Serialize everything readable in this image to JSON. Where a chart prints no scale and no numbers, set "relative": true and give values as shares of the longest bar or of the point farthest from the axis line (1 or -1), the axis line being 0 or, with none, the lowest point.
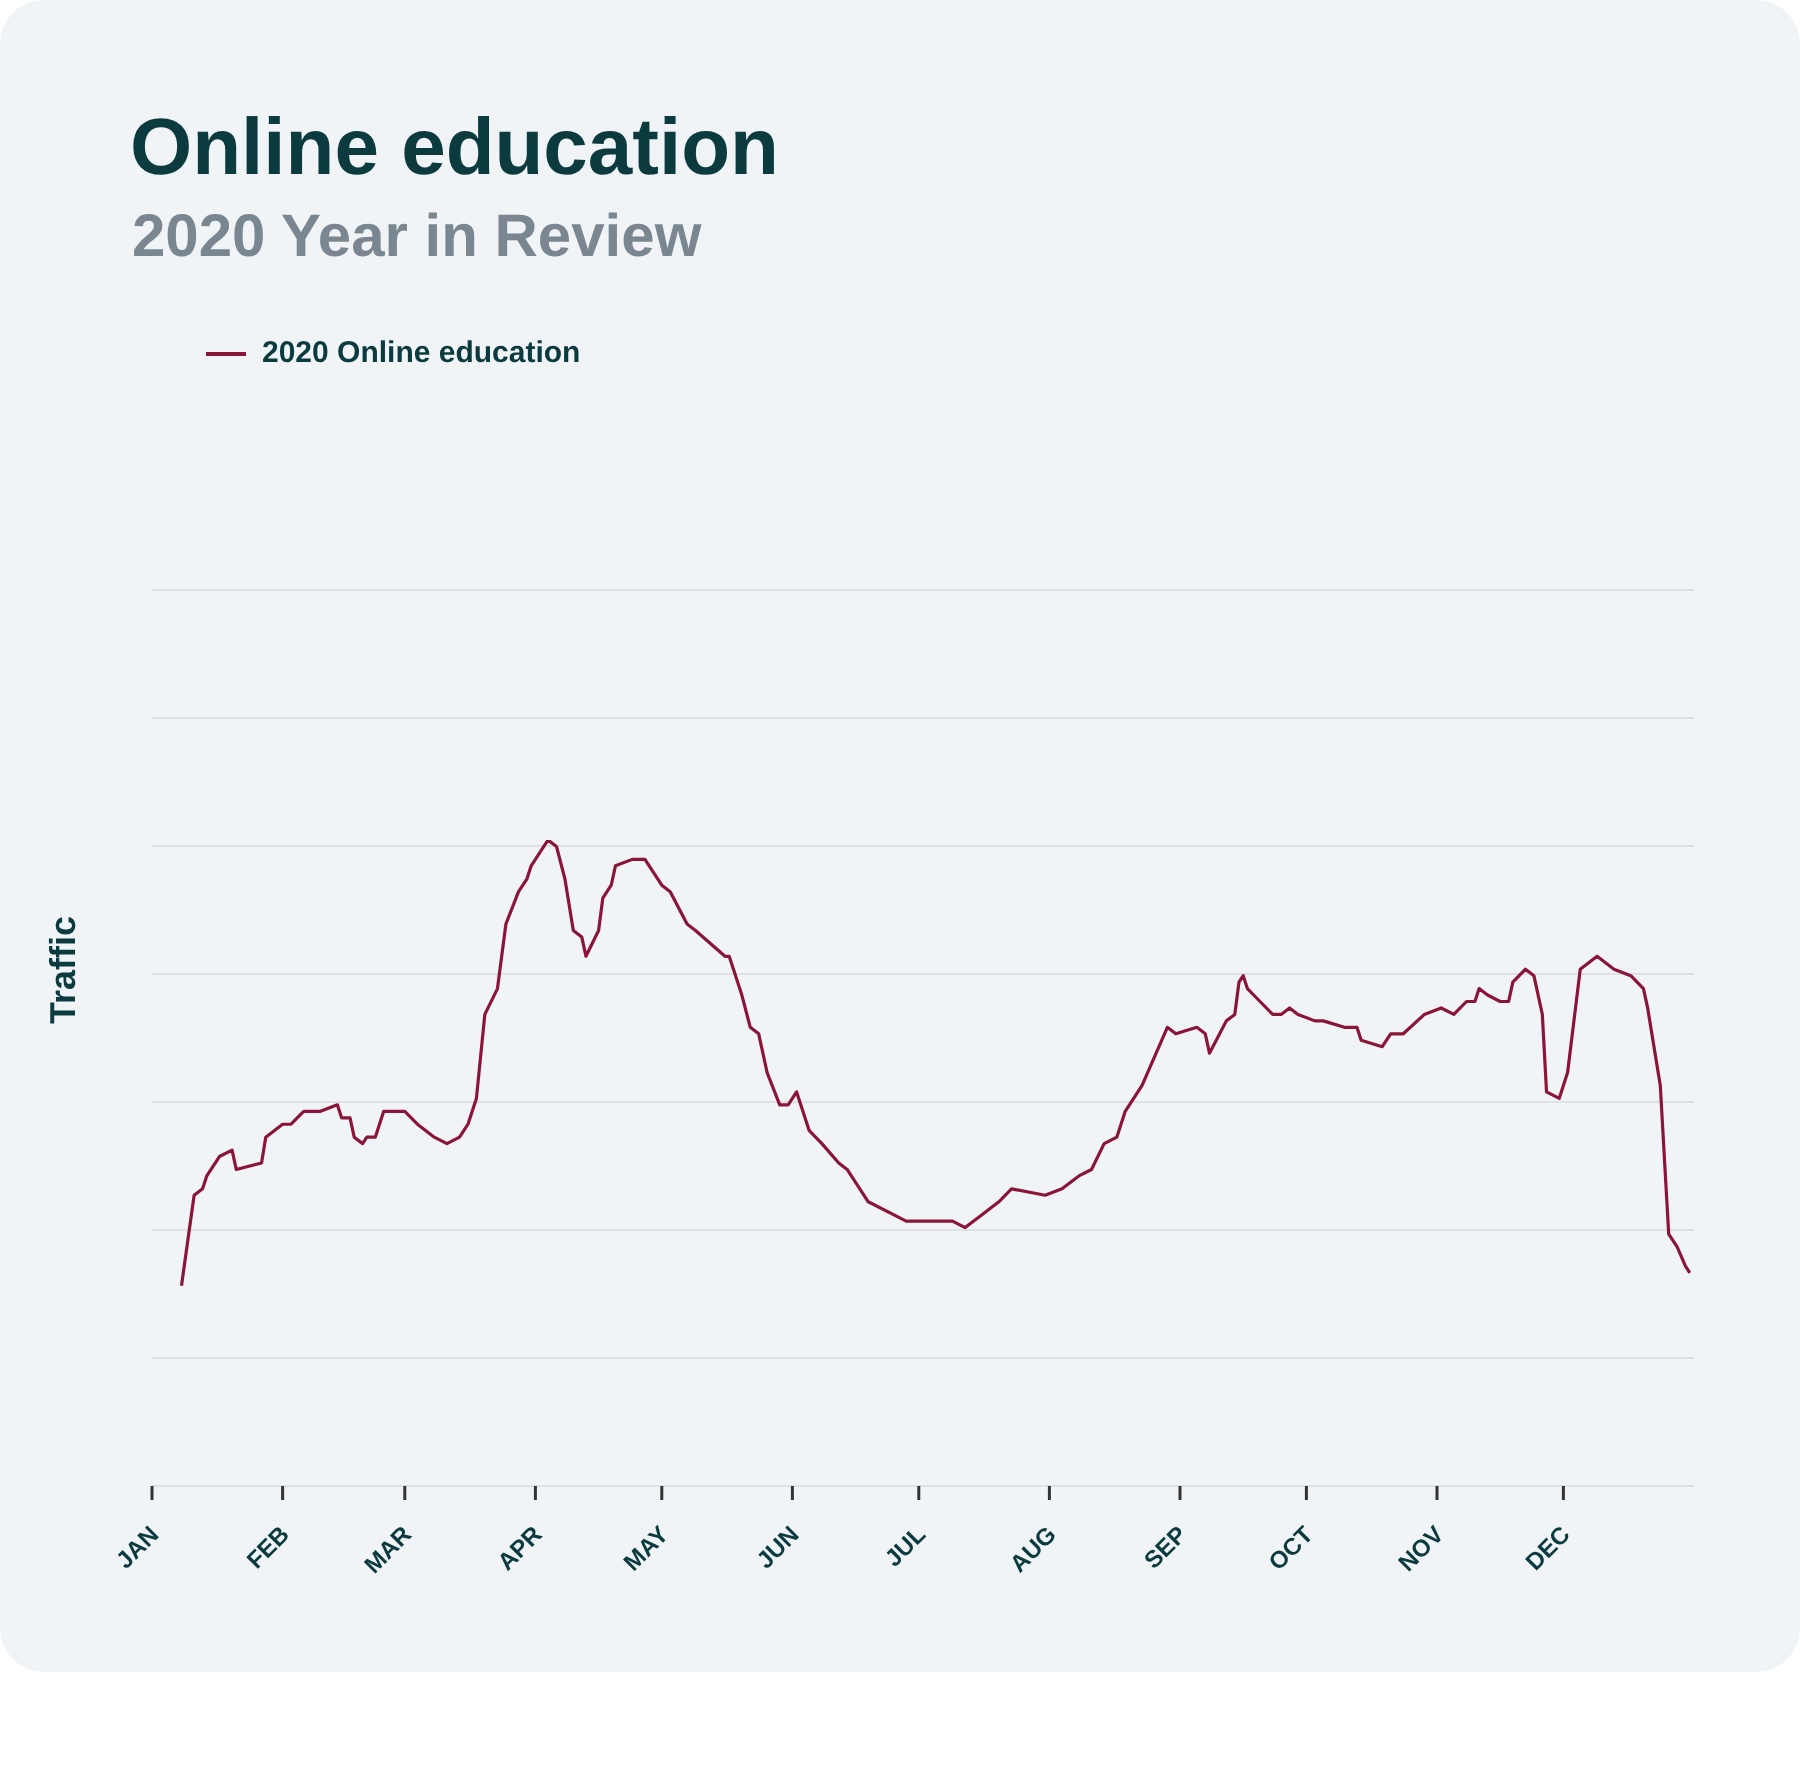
{
  "chart_data": {
    "type": "line",
    "title": "Online education",
    "subtitle": "2020 Year in Review",
    "ylabel": "Traffic",
    "relative": true,
    "grid": true,
    "legend": "top left",
    "marker": "none",
    "line_style": "solid",
    "xlim": [
      "2020-01-01",
      "2021-01-01"
    ],
    "xticks": [
      {
        "value": "2020-01-01",
        "label": "JAN"
      },
      {
        "value": "2020-02-01",
        "label": "FEB"
      },
      {
        "value": "2020-03-01",
        "label": "MAR"
      },
      {
        "value": "2020-04-01",
        "label": "APR"
      },
      {
        "value": "2020-05-01",
        "label": "MAY"
      },
      {
        "value": "2020-06-01",
        "label": "JUN"
      },
      {
        "value": "2020-07-01",
        "label": "JUL"
      },
      {
        "value": "2020-08-01",
        "label": "AUG"
      },
      {
        "value": "2020-09-01",
        "label": "SEP"
      },
      {
        "value": "2020-10-01",
        "label": "OCT"
      },
      {
        "value": "2020-11-01",
        "label": "NOV"
      },
      {
        "value": "2020-12-01",
        "label": "DEC"
      }
    ],
    "x": [
      "2020-01-08",
      "2020-01-11",
      "2020-01-13",
      "2020-01-14",
      "2020-01-17",
      "2020-01-20",
      "2020-01-21",
      "2020-01-27",
      "2020-01-28",
      "2020-02-01",
      "2020-02-03",
      "2020-02-06",
      "2020-02-10",
      "2020-02-14",
      "2020-02-15",
      "2020-02-17",
      "2020-02-18",
      "2020-02-20",
      "2020-02-21",
      "2020-02-23",
      "2020-02-25",
      "2020-02-27",
      "2020-03-01",
      "2020-03-04",
      "2020-03-08",
      "2020-03-11",
      "2020-03-14",
      "2020-03-16",
      "2020-03-18",
      "2020-03-20",
      "2020-03-23",
      "2020-03-25",
      "2020-03-28",
      "2020-03-30",
      "2020-03-31",
      "2020-04-02",
      "2020-04-04",
      "2020-04-06",
      "2020-04-08",
      "2020-04-10",
      "2020-04-12",
      "2020-04-13",
      "2020-04-16",
      "2020-04-17",
      "2020-04-19",
      "2020-04-20",
      "2020-04-24",
      "2020-04-27",
      "2020-05-01",
      "2020-05-03",
      "2020-05-07",
      "2020-05-09",
      "2020-05-16",
      "2020-05-17",
      "2020-05-20",
      "2020-05-22",
      "2020-05-24",
      "2020-05-26",
      "2020-05-29",
      "2020-05-31",
      "2020-06-02",
      "2020-06-05",
      "2020-06-08",
      "2020-06-12",
      "2020-06-14",
      "2020-06-19",
      "2020-06-25",
      "2020-06-28",
      "2020-06-30",
      "2020-07-02",
      "2020-07-05",
      "2020-07-09",
      "2020-07-12",
      "2020-07-16",
      "2020-07-20",
      "2020-07-23",
      "2020-07-31",
      "2020-08-04",
      "2020-08-08",
      "2020-08-11",
      "2020-08-14",
      "2020-08-17",
      "2020-08-19",
      "2020-08-22",
      "2020-08-23",
      "2020-08-29",
      "2020-08-31",
      "2020-09-05",
      "2020-09-07",
      "2020-09-08",
      "2020-09-12",
      "2020-09-14",
      "2020-09-15",
      "2020-09-16",
      "2020-09-17",
      "2020-09-20",
      "2020-09-23",
      "2020-09-25",
      "2020-09-27",
      "2020-09-29",
      "2020-10-03",
      "2020-10-05",
      "2020-10-10",
      "2020-10-13",
      "2020-10-14",
      "2020-10-19",
      "2020-10-21",
      "2020-10-24",
      "2020-10-29",
      "2020-11-02",
      "2020-11-05",
      "2020-11-08",
      "2020-11-10",
      "2020-11-11",
      "2020-11-13",
      "2020-11-16",
      "2020-11-18",
      "2020-11-19",
      "2020-11-22",
      "2020-11-24",
      "2020-11-26",
      "2020-11-27",
      "2020-11-30",
      "2020-12-02",
      "2020-12-05",
      "2020-12-09",
      "2020-12-11",
      "2020-12-13",
      "2020-12-17",
      "2020-12-20",
      "2020-12-21",
      "2020-12-24",
      "2020-12-26",
      "2020-12-28",
      "2020-12-30",
      "2020-12-31"
    ],
    "series": [
      {
        "name": "2020 Online education",
        "color": "#8a1538",
        "values": [
          0.31,
          0.45,
          0.46,
          0.48,
          0.51,
          0.52,
          0.49,
          0.5,
          0.54,
          0.56,
          0.56,
          0.58,
          0.58,
          0.59,
          0.57,
          0.57,
          0.54,
          0.53,
          0.54,
          0.54,
          0.58,
          0.58,
          0.58,
          0.56,
          0.54,
          0.53,
          0.54,
          0.56,
          0.6,
          0.73,
          0.77,
          0.87,
          0.92,
          0.94,
          0.96,
          0.98,
          1.0,
          0.99,
          0.94,
          0.86,
          0.85,
          0.82,
          0.86,
          0.91,
          0.93,
          0.96,
          0.97,
          0.97,
          0.93,
          0.92,
          0.87,
          0.86,
          0.82,
          0.82,
          0.76,
          0.71,
          0.7,
          0.64,
          0.59,
          0.59,
          0.61,
          0.55,
          0.53,
          0.5,
          0.49,
          0.44,
          0.42,
          0.41,
          0.41,
          0.41,
          0.41,
          0.41,
          0.4,
          0.42,
          0.44,
          0.46,
          0.45,
          0.46,
          0.48,
          0.49,
          0.53,
          0.54,
          0.58,
          0.61,
          0.62,
          0.71,
          0.7,
          0.71,
          0.7,
          0.67,
          0.72,
          0.73,
          0.78,
          0.79,
          0.77,
          0.75,
          0.73,
          0.73,
          0.74,
          0.73,
          0.72,
          0.72,
          0.71,
          0.71,
          0.69,
          0.68,
          0.7,
          0.7,
          0.73,
          0.74,
          0.73,
          0.75,
          0.75,
          0.77,
          0.76,
          0.75,
          0.75,
          0.78,
          0.8,
          0.79,
          0.73,
          0.61,
          0.6,
          0.64,
          0.8,
          0.82,
          0.81,
          0.8,
          0.79,
          0.77,
          0.74,
          0.62,
          0.39,
          0.37,
          0.34,
          0.33
        ]
      }
    ]
  }
}
